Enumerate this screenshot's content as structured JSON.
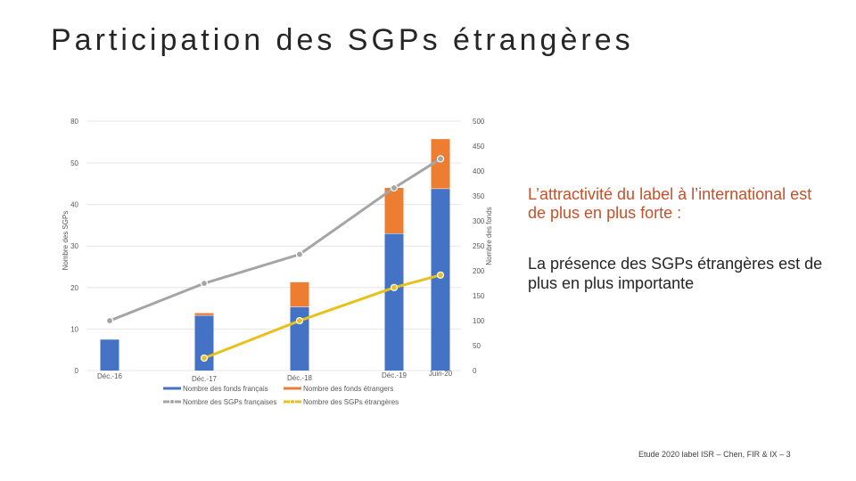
{
  "slide": {
    "title": "Participation des SGPs étrangères",
    "headline": "L’attractivité du label à l’international est de plus en plus forte :",
    "subline": "La présence des SGPs étrangères est de plus en plus importante",
    "footer": "Etude 2020 label ISR – Chen, FIR & IX – 3"
  },
  "chart_data": {
    "type": "bar",
    "categories": [
      "Déc.-16",
      "Déc.-17",
      "Déc.-18",
      "Déc.-19",
      "Juin-20"
    ],
    "y_left": {
      "label": "Nombre des SGPs",
      "lim": [
        0,
        80
      ],
      "ticks": [
        0,
        10,
        20,
        30,
        40,
        50,
        80
      ]
    },
    "y_right": {
      "label": "Nombre des fonds",
      "lim": [
        0,
        500
      ],
      "ticks": [
        0,
        50,
        100,
        150,
        200,
        250,
        300,
        350,
        400,
        450,
        500
      ]
    },
    "series": [
      {
        "name": "Nombre des fonds français",
        "kind": "bar",
        "axis": "right",
        "color": "#4472C4",
        "values": [
          63,
          111,
          128,
          275,
          365
        ]
      },
      {
        "name": "Nombre des fonds étrangers",
        "kind": "bar",
        "axis": "right",
        "color": "#ED7D31",
        "values": [
          0,
          5,
          50,
          92,
          100
        ]
      },
      {
        "name": "Nombre des SGPs françaises",
        "kind": "line",
        "axis": "left",
        "color": "#A5A5A5",
        "values": [
          12,
          21,
          28,
          44,
          53
        ]
      },
      {
        "name": "Nombre des SGPs étrangères",
        "kind": "line",
        "axis": "left",
        "color": "#E8C11F",
        "values": [
          null,
          3,
          12,
          20,
          23
        ]
      }
    ],
    "legend_position": "bottom",
    "grid": true
  }
}
